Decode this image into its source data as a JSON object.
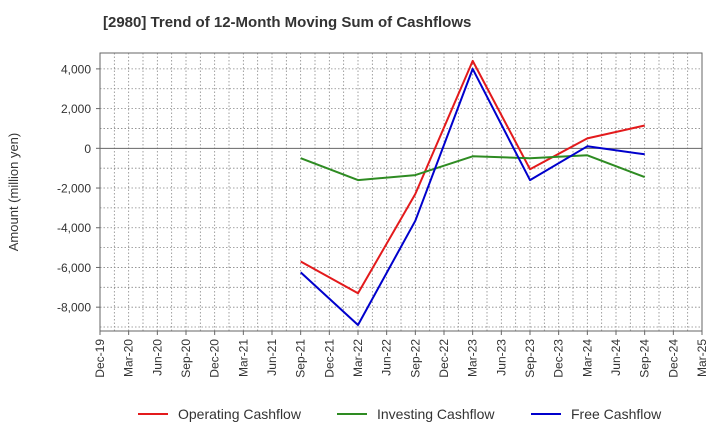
{
  "chart_data": {
    "type": "line",
    "title": "[2980]  Trend of 12-Month Moving Sum of Cashflows",
    "xlabel": "",
    "ylabel": "Amount (million yen)",
    "categories": [
      "Dec-19",
      "Mar-20",
      "Jun-20",
      "Sep-20",
      "Dec-20",
      "Mar-21",
      "Jun-21",
      "Sep-21",
      "Dec-21",
      "Mar-22",
      "Jun-22",
      "Sep-22",
      "Dec-22",
      "Mar-23",
      "Jun-23",
      "Sep-23",
      "Dec-23",
      "Mar-24",
      "Jun-24",
      "Sep-24",
      "Dec-24",
      "Mar-25"
    ],
    "ylim": [
      -9200,
      4800
    ],
    "yticks": [
      4000,
      2000,
      0,
      -2000,
      -4000,
      -6000,
      -8000
    ],
    "ytick_labels": [
      "4,000",
      "2,000",
      "0",
      "-2,000",
      "-4,000",
      "-6,000",
      "-8,000"
    ],
    "grid": true,
    "legend_position": "bottom",
    "series": [
      {
        "name": "Operating Cashflow",
        "color": "#e31a1c",
        "values": [
          null,
          null,
          null,
          null,
          null,
          null,
          null,
          -5700,
          null,
          -7300,
          null,
          -2300,
          null,
          4400,
          null,
          -1050,
          null,
          500,
          null,
          1150,
          null,
          null
        ]
      },
      {
        "name": "Investing Cashflow",
        "color": "#2e8b22",
        "values": [
          null,
          null,
          null,
          null,
          null,
          null,
          null,
          -500,
          null,
          -1600,
          null,
          -1350,
          null,
          -400,
          null,
          -500,
          null,
          -350,
          null,
          -1450,
          null,
          null
        ]
      },
      {
        "name": "Free Cashflow",
        "color": "#0000cc",
        "values": [
          null,
          null,
          null,
          null,
          null,
          null,
          null,
          -6250,
          null,
          -8900,
          null,
          -3650,
          null,
          4000,
          null,
          -1600,
          null,
          100,
          null,
          -300,
          null,
          null
        ]
      }
    ]
  }
}
